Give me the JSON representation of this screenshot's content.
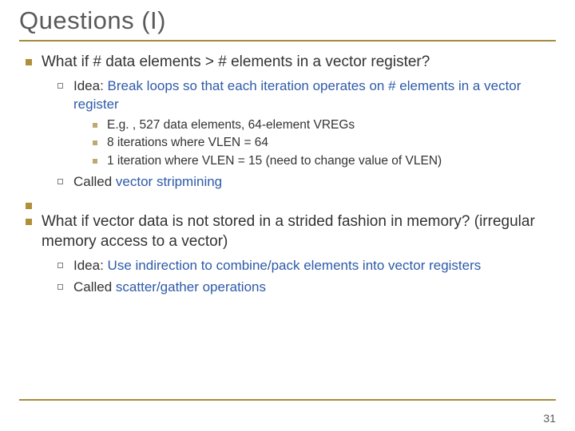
{
  "title": "Questions (I)",
  "pagenum": "31",
  "colors": {
    "title": "#595959",
    "rule": "#a68b3a",
    "bullet_l1": "#b08f3a",
    "bullet_l3": "#b09a5a",
    "accent": "#2e5aa8",
    "body": "#333333"
  },
  "q1": {
    "text": "What if # data elements > # elements in a vector register?",
    "idea_prefix": "Idea: ",
    "idea_accent": "Break loops so that each iteration operates on # elements in a vector register",
    "details": [
      "E.g. , 527 data elements, 64-element VREGs",
      "8 iterations where VLEN = 64",
      "1 iteration where VLEN = 15 (need to change value of VLEN)"
    ],
    "called_prefix": "Called ",
    "called_accent": "vector stripmining"
  },
  "q2": {
    "text": "What if vector data is not stored in a strided fashion in memory? (irregular memory access to a vector)",
    "idea_prefix": "Idea: ",
    "idea_accent": "Use indirection to combine/pack elements into vector registers",
    "called_prefix": "Called ",
    "called_accent": "scatter/gather operations"
  }
}
